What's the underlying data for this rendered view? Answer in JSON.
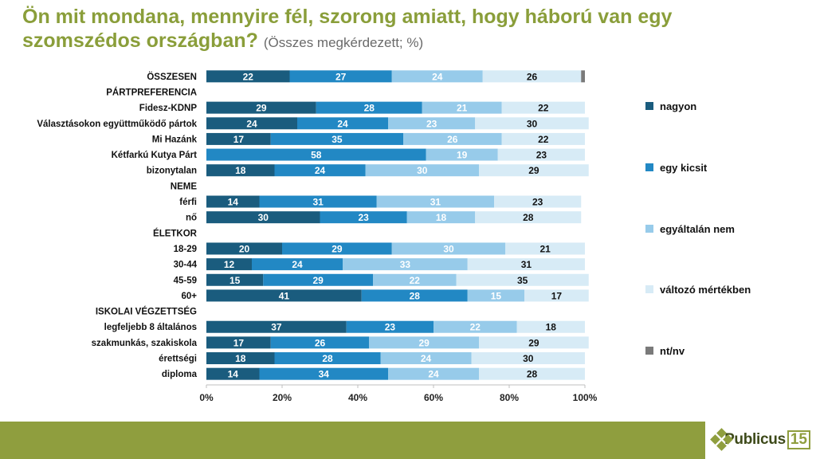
{
  "title": {
    "main": "Ön mit mondana, mennyire fél, szorong amiatt, hogy háború van egy szomszédos országban?",
    "sub": "(Összes megkérdezett; %)"
  },
  "logo": {
    "word": "Publicus",
    "num": "15"
  },
  "colors": {
    "nagyon": "#1a5c7e",
    "egy_kicsit": "#2288c4",
    "egyaltalan_nem": "#97cbea",
    "valtozo": "#d7ebf6",
    "ntnv": "#7a7a7a",
    "accent": "#8f9e3e"
  },
  "chart_data": {
    "type": "bar",
    "orientation": "horizontal",
    "stacked": true,
    "xlim": [
      0,
      100
    ],
    "x_ticks": [
      "0%",
      "20%",
      "40%",
      "60%",
      "80%",
      "100%"
    ],
    "legend_position": "right",
    "series": [
      {
        "name": "nagyon",
        "color": "#1a5c7e"
      },
      {
        "name": "egy kicsit",
        "color": "#2288c4"
      },
      {
        "name": "egyáltalán nem",
        "color": "#97cbea"
      },
      {
        "name": "változó mértékben",
        "color": "#d7ebf6"
      },
      {
        "name": "nt/nv",
        "color": "#7a7a7a"
      }
    ],
    "rows": [
      {
        "label": "ÖSSZESEN",
        "values": [
          22,
          27,
          24,
          26,
          1
        ]
      },
      {
        "label": "PÁRTPREFERENCIA",
        "header": true
      },
      {
        "label": "Fidesz-KDNP",
        "values": [
          29,
          28,
          21,
          22,
          0
        ]
      },
      {
        "label": "Választásokon együttműködő pártok",
        "values": [
          24,
          24,
          23,
          30,
          0
        ]
      },
      {
        "label": "Mi Hazánk",
        "values": [
          17,
          35,
          26,
          22,
          0
        ]
      },
      {
        "label": "Kétfarkú Kutya Párt",
        "values": [
          0,
          58,
          19,
          23,
          0
        ]
      },
      {
        "label": "bizonytalan",
        "values": [
          18,
          24,
          30,
          29,
          0
        ]
      },
      {
        "label": "NEME",
        "header": true
      },
      {
        "label": "férfi",
        "values": [
          14,
          31,
          31,
          23,
          0
        ]
      },
      {
        "label": "nő",
        "values": [
          30,
          23,
          18,
          28,
          0
        ]
      },
      {
        "label": "ÉLETKOR",
        "header": true
      },
      {
        "label": "18-29",
        "values": [
          20,
          29,
          30,
          21,
          0
        ]
      },
      {
        "label": "30-44",
        "values": [
          12,
          24,
          33,
          31,
          0
        ]
      },
      {
        "label": "45-59",
        "values": [
          15,
          29,
          22,
          35,
          0
        ]
      },
      {
        "label": "60+",
        "values": [
          41,
          28,
          15,
          17,
          0
        ]
      },
      {
        "label": "ISKOLAI VÉGZETTSÉG",
        "header": true
      },
      {
        "label": "legfeljebb 8 általános",
        "values": [
          37,
          23,
          22,
          18,
          0
        ]
      },
      {
        "label": "szakmunkás, szakiskola",
        "values": [
          17,
          26,
          29,
          29,
          0
        ]
      },
      {
        "label": "érettségi",
        "values": [
          18,
          28,
          24,
          30,
          0
        ]
      },
      {
        "label": "diploma",
        "values": [
          14,
          34,
          24,
          28,
          0
        ]
      }
    ]
  }
}
